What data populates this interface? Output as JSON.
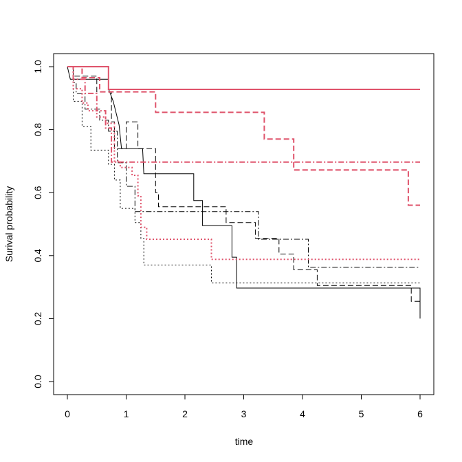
{
  "chart_data": {
    "type": "line",
    "title": "",
    "xlabel": "time",
    "ylabel": "Surival probability",
    "xlim": [
      0,
      6
    ],
    "ylim": [
      0,
      1
    ],
    "x_ticks": [
      "0",
      "1",
      "2",
      "3",
      "4",
      "5",
      "6"
    ],
    "y_ticks": [
      "0.0",
      "0.2",
      "0.4",
      "0.6",
      "0.8",
      "1.0"
    ],
    "grid": false,
    "legend": "none",
    "step_function": true,
    "series": [
      {
        "color": "#000000",
        "dash": "solid",
        "width": 1,
        "points": [
          [
            0,
            1.0
          ],
          [
            0.05,
            0.96
          ],
          [
            0.7,
            0.96
          ],
          [
            0.7,
            0.93
          ],
          [
            0.78,
            0.89
          ],
          [
            0.88,
            0.815
          ],
          [
            0.92,
            0.74
          ],
          [
            1.28,
            0.74
          ],
          [
            1.3,
            0.66
          ],
          [
            2.15,
            0.66
          ],
          [
            2.15,
            0.575
          ],
          [
            2.3,
            0.575
          ],
          [
            2.3,
            0.495
          ],
          [
            2.8,
            0.495
          ],
          [
            2.8,
            0.395
          ],
          [
            2.88,
            0.395
          ],
          [
            2.88,
            0.297
          ],
          [
            6.0,
            0.297
          ],
          [
            6.0,
            0.2
          ]
        ]
      },
      {
        "color": "#000000",
        "dash": "dashed",
        "width": 1,
        "points": [
          [
            0,
            1.0
          ],
          [
            0.1,
            1.0
          ],
          [
            0.1,
            0.97
          ],
          [
            0.5,
            0.97
          ],
          [
            0.5,
            0.92
          ],
          [
            0.75,
            0.92
          ],
          [
            0.75,
            0.825
          ],
          [
            0.8,
            0.825
          ],
          [
            0.8,
            0.74
          ],
          [
            1.0,
            0.74
          ],
          [
            1.0,
            0.825
          ],
          [
            1.2,
            0.825
          ],
          [
            1.2,
            0.74
          ],
          [
            1.5,
            0.74
          ],
          [
            1.5,
            0.6
          ],
          [
            1.55,
            0.6
          ],
          [
            1.55,
            0.555
          ],
          [
            2.7,
            0.555
          ],
          [
            2.7,
            0.505
          ],
          [
            3.2,
            0.505
          ],
          [
            3.2,
            0.455
          ],
          [
            3.6,
            0.455
          ],
          [
            3.6,
            0.405
          ],
          [
            3.85,
            0.405
          ],
          [
            3.85,
            0.355
          ],
          [
            4.25,
            0.355
          ],
          [
            4.25,
            0.305
          ],
          [
            5.85,
            0.305
          ],
          [
            5.85,
            0.255
          ],
          [
            6.0,
            0.255
          ],
          [
            6.0,
            0.2
          ]
        ]
      },
      {
        "color": "#000000",
        "dash": "dotted",
        "width": 1,
        "points": [
          [
            0,
            1.0
          ],
          [
            0.1,
            1.0
          ],
          [
            0.1,
            0.89
          ],
          [
            0.25,
            0.89
          ],
          [
            0.25,
            0.81
          ],
          [
            0.4,
            0.81
          ],
          [
            0.4,
            0.735
          ],
          [
            0.7,
            0.735
          ],
          [
            0.7,
            0.69
          ],
          [
            0.8,
            0.69
          ],
          [
            0.8,
            0.64
          ],
          [
            0.9,
            0.64
          ],
          [
            0.9,
            0.55
          ],
          [
            1.15,
            0.55
          ],
          [
            1.15,
            0.505
          ],
          [
            1.25,
            0.505
          ],
          [
            1.25,
            0.455
          ],
          [
            1.3,
            0.455
          ],
          [
            1.3,
            0.37
          ],
          [
            2.45,
            0.37
          ],
          [
            2.45,
            0.313
          ],
          [
            6.0,
            0.313
          ]
        ]
      },
      {
        "color": "#000000",
        "dash": "dashdot",
        "width": 1,
        "points": [
          [
            0,
            1.0
          ],
          [
            0.1,
            1.0
          ],
          [
            0.1,
            0.95
          ],
          [
            0.15,
            0.95
          ],
          [
            0.15,
            0.915
          ],
          [
            0.3,
            0.915
          ],
          [
            0.3,
            0.865
          ],
          [
            0.55,
            0.865
          ],
          [
            0.55,
            0.83
          ],
          [
            0.7,
            0.83
          ],
          [
            0.7,
            0.795
          ],
          [
            0.85,
            0.795
          ],
          [
            0.85,
            0.695
          ],
          [
            1.0,
            0.695
          ],
          [
            1.0,
            0.62
          ],
          [
            1.15,
            0.62
          ],
          [
            1.15,
            0.54
          ],
          [
            3.25,
            0.54
          ],
          [
            3.25,
            0.452
          ],
          [
            4.1,
            0.452
          ],
          [
            4.1,
            0.363
          ],
          [
            6.0,
            0.363
          ]
        ]
      },
      {
        "color": "#df536b",
        "dash": "solid",
        "width": 2,
        "points": [
          [
            0,
            1.0
          ],
          [
            0.7,
            1.0
          ],
          [
            0.7,
            0.928
          ],
          [
            6.0,
            0.928
          ]
        ]
      },
      {
        "color": "#df536b",
        "dash": "dashed",
        "width": 2,
        "points": [
          [
            0,
            1.0
          ],
          [
            0.25,
            1.0
          ],
          [
            0.25,
            0.965
          ],
          [
            0.55,
            0.965
          ],
          [
            0.55,
            0.92
          ],
          [
            1.5,
            0.92
          ],
          [
            1.5,
            0.855
          ],
          [
            3.35,
            0.855
          ],
          [
            3.35,
            0.77
          ],
          [
            3.85,
            0.77
          ],
          [
            3.85,
            0.672
          ],
          [
            5.8,
            0.672
          ],
          [
            5.8,
            0.56
          ],
          [
            6.0,
            0.56
          ]
        ]
      },
      {
        "color": "#df536b",
        "dash": "dashdot",
        "width": 2,
        "points": [
          [
            0,
            1.0
          ],
          [
            0.1,
            1.0
          ],
          [
            0.1,
            0.96
          ],
          [
            0.3,
            0.96
          ],
          [
            0.3,
            0.915
          ],
          [
            0.5,
            0.915
          ],
          [
            0.5,
            0.86
          ],
          [
            0.65,
            0.86
          ],
          [
            0.65,
            0.805
          ],
          [
            0.75,
            0.805
          ],
          [
            0.75,
            0.697
          ],
          [
            6.0,
            0.697
          ]
        ]
      },
      {
        "color": "#df536b",
        "dash": "dotted",
        "width": 2,
        "points": [
          [
            0,
            1.0
          ],
          [
            0.1,
            1.0
          ],
          [
            0.1,
            0.93
          ],
          [
            0.25,
            0.93
          ],
          [
            0.25,
            0.885
          ],
          [
            0.35,
            0.885
          ],
          [
            0.35,
            0.86
          ],
          [
            0.5,
            0.86
          ],
          [
            0.5,
            0.84
          ],
          [
            0.65,
            0.84
          ],
          [
            0.65,
            0.82
          ],
          [
            0.8,
            0.82
          ],
          [
            0.8,
            0.7
          ],
          [
            0.9,
            0.7
          ],
          [
            0.9,
            0.68
          ],
          [
            1.1,
            0.68
          ],
          [
            1.1,
            0.655
          ],
          [
            1.2,
            0.655
          ],
          [
            1.2,
            0.59
          ],
          [
            1.25,
            0.59
          ],
          [
            1.25,
            0.49
          ],
          [
            1.35,
            0.49
          ],
          [
            1.35,
            0.452
          ],
          [
            2.45,
            0.452
          ],
          [
            2.45,
            0.388
          ],
          [
            6.0,
            0.388
          ]
        ]
      }
    ]
  }
}
